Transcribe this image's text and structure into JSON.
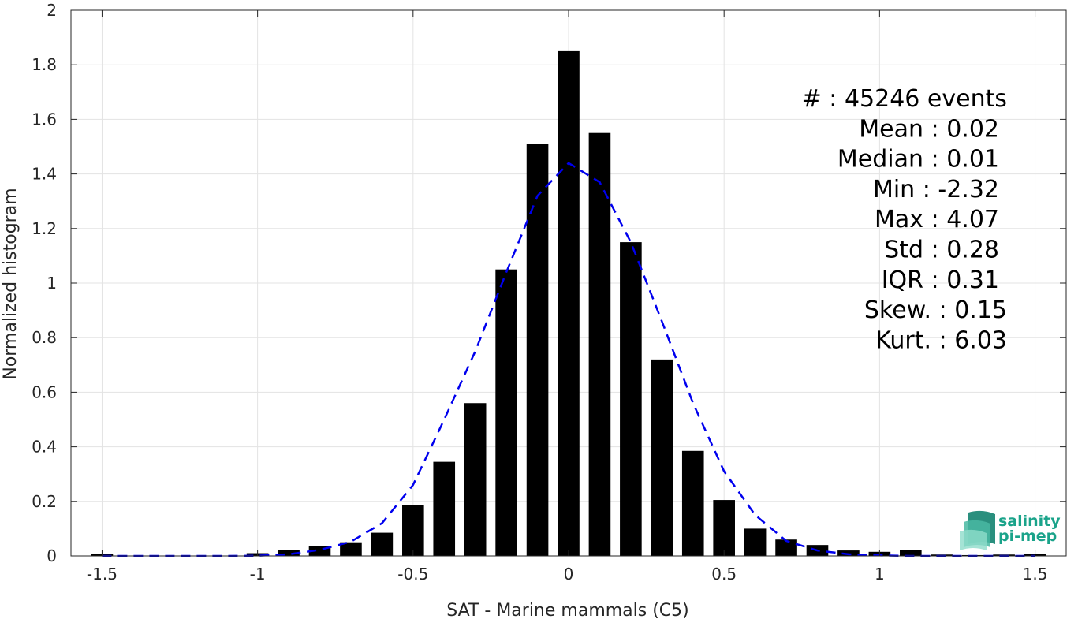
{
  "chart_data": {
    "type": "bar",
    "xlabel": "SAT - Marine mammals (C5)",
    "ylabel": "Normalized histogram",
    "xlim": [
      -1.6,
      1.6
    ],
    "ylim": [
      0,
      2
    ],
    "xticks": [
      -1.5,
      -1,
      -0.5,
      0,
      0.5,
      1,
      1.5
    ],
    "xtick_labels": [
      "-1.5",
      "-1",
      "-0.5",
      "0",
      "0.5",
      "1",
      "1.5"
    ],
    "yticks": [
      0,
      0.2,
      0.4,
      0.6,
      0.8,
      1,
      1.2,
      1.4,
      1.6,
      1.8,
      2
    ],
    "ytick_labels": [
      "0",
      "0.2",
      "0.4",
      "0.6",
      "0.8",
      "1",
      "1.2",
      "1.4",
      "1.6",
      "1.8",
      "2"
    ],
    "grid": true,
    "bar_width": 0.07,
    "bar_color": "#000000",
    "bars": [
      {
        "x": -1.5,
        "y": 0.008
      },
      {
        "x": -1.4,
        "y": 0.0
      },
      {
        "x": -1.3,
        "y": 0.0
      },
      {
        "x": -1.2,
        "y": 0.0
      },
      {
        "x": -1.1,
        "y": 0.0
      },
      {
        "x": -1.0,
        "y": 0.01
      },
      {
        "x": -0.9,
        "y": 0.022
      },
      {
        "x": -0.8,
        "y": 0.035
      },
      {
        "x": -0.7,
        "y": 0.05
      },
      {
        "x": -0.6,
        "y": 0.085
      },
      {
        "x": -0.5,
        "y": 0.185
      },
      {
        "x": -0.4,
        "y": 0.345
      },
      {
        "x": -0.3,
        "y": 0.56
      },
      {
        "x": -0.2,
        "y": 1.05
      },
      {
        "x": -0.1,
        "y": 1.51
      },
      {
        "x": 0.0,
        "y": 1.85
      },
      {
        "x": 0.1,
        "y": 1.55
      },
      {
        "x": 0.2,
        "y": 1.15
      },
      {
        "x": 0.3,
        "y": 0.72
      },
      {
        "x": 0.4,
        "y": 0.385
      },
      {
        "x": 0.5,
        "y": 0.205
      },
      {
        "x": 0.6,
        "y": 0.1
      },
      {
        "x": 0.7,
        "y": 0.06
      },
      {
        "x": 0.8,
        "y": 0.04
      },
      {
        "x": 0.9,
        "y": 0.02
      },
      {
        "x": 1.0,
        "y": 0.015
      },
      {
        "x": 1.1,
        "y": 0.022
      },
      {
        "x": 1.2,
        "y": 0.005
      },
      {
        "x": 1.3,
        "y": 0.003
      },
      {
        "x": 1.4,
        "y": 0.005
      },
      {
        "x": 1.5,
        "y": 0.008
      }
    ],
    "fit_curve": {
      "style": "dashed",
      "color": "#0000ee",
      "points": [
        [
          -1.5,
          0.0
        ],
        [
          -1.4,
          0.0
        ],
        [
          -1.3,
          0.0
        ],
        [
          -1.2,
          0.0
        ],
        [
          -1.1,
          0.0
        ],
        [
          -1.0,
          0.001
        ],
        [
          -0.9,
          0.006
        ],
        [
          -0.8,
          0.022
        ],
        [
          -0.7,
          0.052
        ],
        [
          -0.6,
          0.12
        ],
        [
          -0.5,
          0.26
        ],
        [
          -0.4,
          0.5
        ],
        [
          -0.3,
          0.75
        ],
        [
          -0.2,
          1.04
        ],
        [
          -0.1,
          1.32
        ],
        [
          0.0,
          1.44
        ],
        [
          0.1,
          1.37
        ],
        [
          0.2,
          1.15
        ],
        [
          0.3,
          0.86
        ],
        [
          0.4,
          0.56
        ],
        [
          0.5,
          0.31
        ],
        [
          0.6,
          0.15
        ],
        [
          0.7,
          0.055
        ],
        [
          0.8,
          0.02
        ],
        [
          0.9,
          0.006
        ],
        [
          1.0,
          0.002
        ],
        [
          1.1,
          0.0
        ],
        [
          1.2,
          0.0
        ],
        [
          1.3,
          0.0
        ],
        [
          1.4,
          0.0
        ],
        [
          1.5,
          0.0
        ]
      ]
    },
    "annotations": [
      "#  : 45246 events",
      "Mean : 0.02",
      "Median : 0.01",
      "Min : -2.32",
      "Max : 4.07",
      "Std : 0.28",
      "IQR : 0.31",
      "Skew. : 0.15",
      "Kurt. : 6.03"
    ]
  },
  "logo": {
    "line1": "salinity",
    "line2": "pi-mep",
    "color": "#1aa38a"
  }
}
